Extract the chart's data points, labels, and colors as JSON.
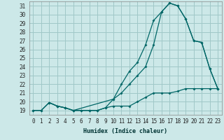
{
  "xlabel": "Humidex (Indice chaleur)",
  "bg_color": "#cce8e8",
  "grid_color": "#a0c8c8",
  "line_color": "#006666",
  "xlim": [
    -0.5,
    23.5
  ],
  "ylim": [
    18.5,
    31.5
  ],
  "xticks": [
    0,
    1,
    2,
    3,
    4,
    5,
    6,
    7,
    8,
    9,
    10,
    11,
    12,
    13,
    14,
    15,
    16,
    17,
    18,
    19,
    20,
    21,
    22,
    23
  ],
  "yticks": [
    19,
    20,
    21,
    22,
    23,
    24,
    25,
    26,
    27,
    28,
    29,
    30,
    31
  ],
  "line1_x": [
    0,
    1,
    2,
    3,
    4,
    5,
    6,
    7,
    8,
    9,
    10,
    11,
    12,
    13,
    14,
    15,
    16,
    17,
    18,
    19,
    20,
    21,
    22,
    23
  ],
  "line1_y": [
    19,
    19,
    19.9,
    19.5,
    19.3,
    19,
    19,
    19,
    19,
    19.3,
    19.5,
    19.5,
    19.5,
    20,
    20.5,
    21,
    21,
    21,
    21.2,
    21.5,
    21.5,
    21.5,
    21.5,
    21.5
  ],
  "line2_x": [
    0,
    1,
    2,
    3,
    4,
    5,
    6,
    7,
    8,
    9,
    10,
    11,
    12,
    13,
    14,
    15,
    16,
    17,
    18,
    19,
    20,
    21,
    22,
    23
  ],
  "line2_y": [
    19,
    19,
    19.9,
    19.5,
    19.3,
    19,
    19,
    19,
    19,
    19.3,
    20.3,
    22,
    23.5,
    24.5,
    26.5,
    29.3,
    30.3,
    31.3,
    31,
    29.5,
    27,
    26.8,
    23.8,
    21.5
  ],
  "line3_x": [
    2,
    3,
    4,
    5,
    10,
    11,
    12,
    13,
    14,
    15,
    16,
    17,
    18,
    19,
    20,
    21,
    22,
    23
  ],
  "line3_y": [
    19.9,
    19.5,
    19.3,
    19,
    20.3,
    21,
    22,
    23,
    24,
    26.5,
    30.3,
    31.3,
    31,
    29.5,
    27,
    26.8,
    23.8,
    21.5
  ]
}
